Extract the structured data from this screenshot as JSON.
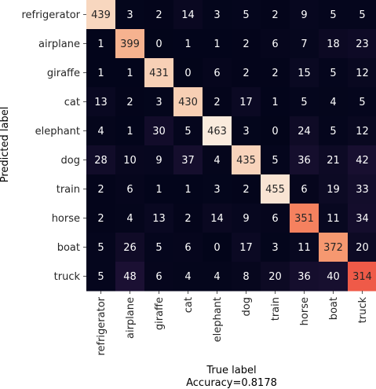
{
  "chart_data": {
    "type": "heatmap",
    "title": "",
    "xlabel": "True label",
    "ylabel": "Predicted label",
    "caption": "Accuracy=0.8178",
    "x_categories": [
      "refrigerator",
      "airplane",
      "giraffe",
      "cat",
      "elephant",
      "dog",
      "train",
      "horse",
      "boat",
      "truck"
    ],
    "y_categories": [
      "refrigerator",
      "airplane",
      "giraffe",
      "cat",
      "elephant",
      "dog",
      "train",
      "horse",
      "boat",
      "truck"
    ],
    "values": [
      [
        439,
        3,
        2,
        14,
        3,
        5,
        2,
        9,
        5,
        5
      ],
      [
        1,
        399,
        0,
        1,
        1,
        2,
        6,
        7,
        18,
        23
      ],
      [
        1,
        1,
        431,
        0,
        6,
        2,
        2,
        15,
        5,
        12
      ],
      [
        13,
        2,
        3,
        430,
        2,
        17,
        1,
        5,
        4,
        5
      ],
      [
        4,
        1,
        30,
        5,
        463,
        3,
        0,
        24,
        5,
        12
      ],
      [
        28,
        10,
        9,
        37,
        4,
        435,
        5,
        36,
        21,
        42
      ],
      [
        2,
        6,
        1,
        1,
        3,
        2,
        455,
        6,
        19,
        33
      ],
      [
        2,
        4,
        13,
        2,
        14,
        9,
        6,
        351,
        11,
        34
      ],
      [
        5,
        26,
        5,
        6,
        0,
        17,
        3,
        11,
        372,
        20
      ],
      [
        5,
        48,
        6,
        4,
        4,
        8,
        20,
        36,
        40,
        314
      ]
    ],
    "value_range": [
      0,
      463
    ],
    "colormap": "rocket",
    "colorbar": false,
    "grid": false
  }
}
